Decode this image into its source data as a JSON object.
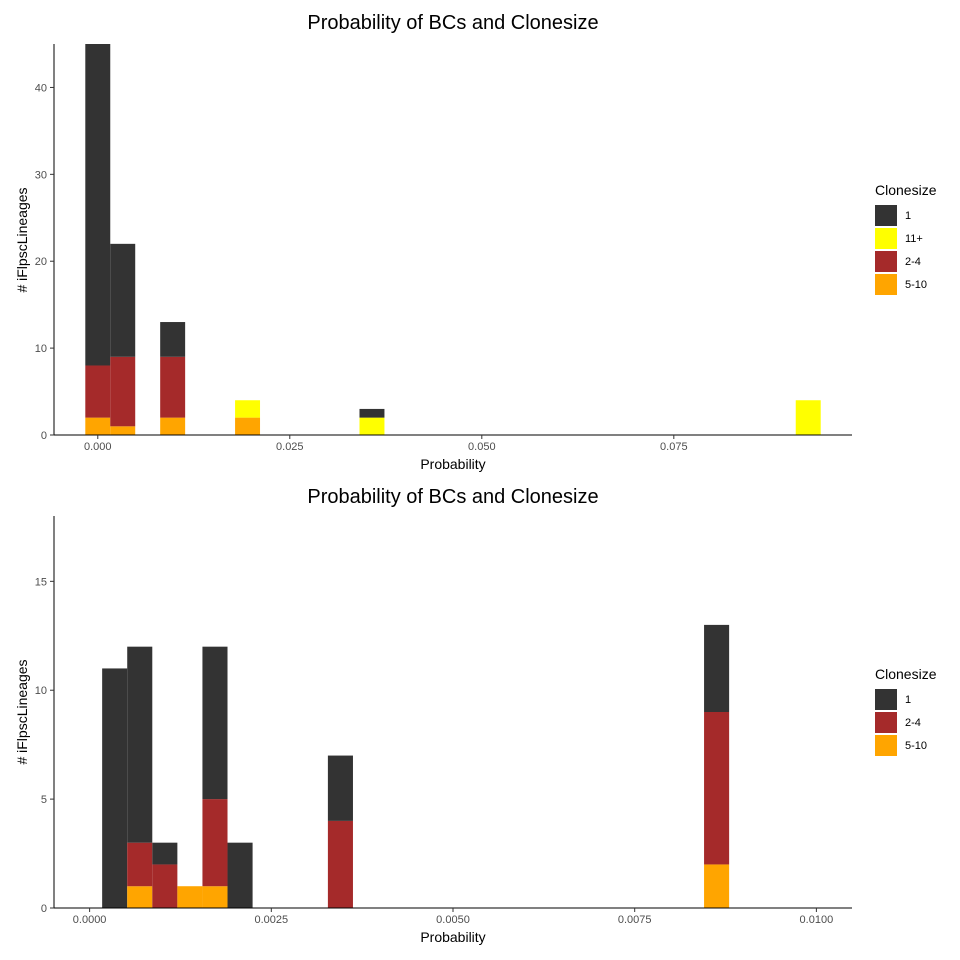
{
  "chart_data": [
    {
      "type": "bar",
      "stacked": true,
      "title": "Probability of BCs and Clonesize",
      "xlabel": "Probability",
      "ylabel": "# iFlpscLineages",
      "xlim": [
        -0.0057,
        0.0982
      ],
      "ylim": [
        0,
        45
      ],
      "bin_width": 0.00325,
      "x_ticks": [
        0.0,
        0.025,
        0.05,
        0.075
      ],
      "x_tick_labels": [
        "0.000",
        "0.025",
        "0.050",
        "0.075"
      ],
      "y_ticks": [
        0,
        10,
        20,
        30,
        40
      ],
      "y_tick_labels": [
        "0",
        "10",
        "20",
        "30",
        "40"
      ],
      "grid": false,
      "legend": {
        "title": "Clonesize",
        "position": "right",
        "entries": [
          {
            "label": "1",
            "color": "#333333"
          },
          {
            "label": "11+",
            "color": "#FFFF00"
          },
          {
            "label": "2-4",
            "color": "#A52A2A"
          },
          {
            "label": "5-10",
            "color": "#FFA500"
          }
        ]
      },
      "bins": [
        {
          "x": 0.0,
          "stack": [
            {
              "group": "5-10",
              "count": 2
            },
            {
              "group": "2-4",
              "count": 6
            },
            {
              "group": "1",
              "count": 37
            }
          ]
        },
        {
          "x": 0.00325,
          "stack": [
            {
              "group": "5-10",
              "count": 1
            },
            {
              "group": "2-4",
              "count": 8
            },
            {
              "group": "1",
              "count": 13
            }
          ]
        },
        {
          "x": 0.00975,
          "stack": [
            {
              "group": "5-10",
              "count": 2
            },
            {
              "group": "2-4",
              "count": 7
            },
            {
              "group": "1",
              "count": 4
            }
          ]
        },
        {
          "x": 0.0195,
          "stack": [
            {
              "group": "5-10",
              "count": 2
            },
            {
              "group": "11+",
              "count": 2
            }
          ]
        },
        {
          "x": 0.0357,
          "stack": [
            {
              "group": "11+",
              "count": 2
            },
            {
              "group": "1",
              "count": 1
            }
          ]
        },
        {
          "x": 0.0925,
          "stack": [
            {
              "group": "11+",
              "count": 4
            }
          ]
        }
      ]
    },
    {
      "type": "bar",
      "stacked": true,
      "title": "Probability of BCs and Clonesize",
      "xlabel": "Probability",
      "ylabel": "# iFlpscLineages",
      "xlim": [
        -0.00049,
        0.01049
      ],
      "ylim": [
        0,
        18
      ],
      "bin_width": 0.000345,
      "x_ticks": [
        0.0,
        0.0025,
        0.005,
        0.0075,
        0.01
      ],
      "x_tick_labels": [
        "0.0000",
        "0.0025",
        "0.0050",
        "0.0075",
        "0.0100"
      ],
      "y_ticks": [
        0,
        5,
        10,
        15
      ],
      "y_tick_labels": [
        "0",
        "5",
        "10",
        "15"
      ],
      "grid": false,
      "legend": {
        "title": "Clonesize",
        "position": "right",
        "entries": [
          {
            "label": "1",
            "color": "#333333"
          },
          {
            "label": "2-4",
            "color": "#A52A2A"
          },
          {
            "label": "5-10",
            "color": "#FFA500"
          }
        ]
      },
      "bins": [
        {
          "x": 0.000345,
          "stack": [
            {
              "group": "1",
              "count": 11
            }
          ]
        },
        {
          "x": 0.00069,
          "stack": [
            {
              "group": "5-10",
              "count": 1
            },
            {
              "group": "2-4",
              "count": 2
            },
            {
              "group": "1",
              "count": 9
            }
          ]
        },
        {
          "x": 0.001035,
          "stack": [
            {
              "group": "2-4",
              "count": 2
            },
            {
              "group": "1",
              "count": 1
            }
          ]
        },
        {
          "x": 0.00138,
          "stack": [
            {
              "group": "5-10",
              "count": 1
            }
          ]
        },
        {
          "x": 0.001725,
          "stack": [
            {
              "group": "5-10",
              "count": 1
            },
            {
              "group": "2-4",
              "count": 4
            },
            {
              "group": "1",
              "count": 7
            }
          ]
        },
        {
          "x": 0.00207,
          "stack": [
            {
              "group": "1",
              "count": 3
            }
          ]
        },
        {
          "x": 0.003451,
          "stack": [
            {
              "group": "2-4",
              "count": 4
            },
            {
              "group": "1",
              "count": 3
            }
          ]
        },
        {
          "x": 0.008627,
          "stack": [
            {
              "group": "5-10",
              "count": 2
            },
            {
              "group": "2-4",
              "count": 7
            },
            {
              "group": "1",
              "count": 4
            }
          ]
        }
      ]
    }
  ]
}
